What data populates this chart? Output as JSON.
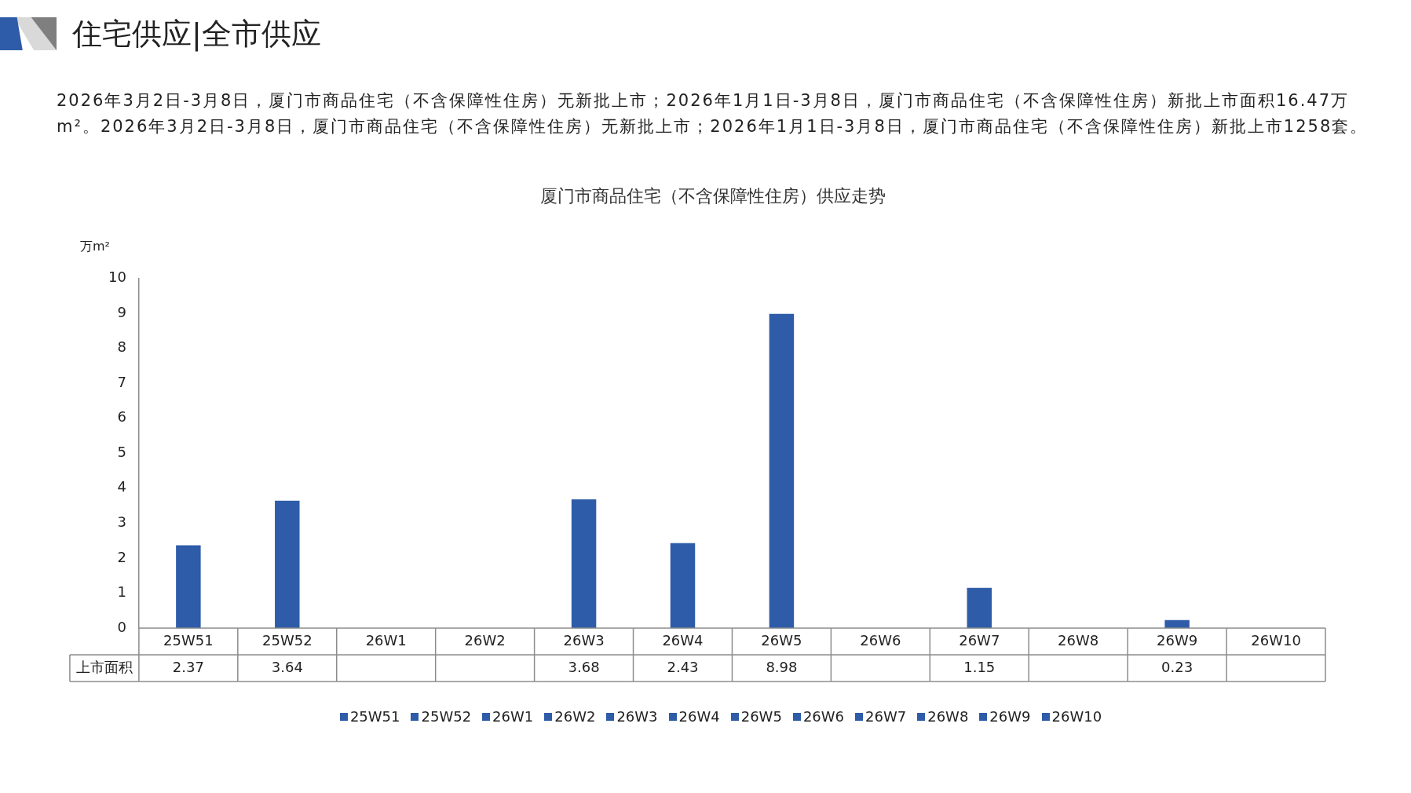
{
  "chart_data": {
    "type": "bar",
    "title": "厦门市商品住宅（不含保障性住房）供应走势",
    "subtitle": "住宅供应|全市供应",
    "annotations": [
      "2026年3月2日-3月8日，厦门市商品住宅（不含保障性住房）无新批上市；2026年1月1日-3月8日，厦门市商品住宅（不含保障性住房）新批上市面积16.47万m²。2026年3月2日-3月8日，厦门市商品住宅（不含保障性住房）无新批上市；2026年1月1日-3月8日，厦门市商品住宅（不含保障性住房）新批上市1258套。"
    ],
    "ylabel": "万m²",
    "categories": [
      "25W51",
      "25W52",
      "26W1",
      "26W2",
      "26W3",
      "26W4",
      "26W5",
      "26W6",
      "26W7",
      "26W8",
      "26W9",
      "26W10"
    ],
    "series": [
      {
        "name": "上市面积",
        "color": "#2e5ca8",
        "values": [
          2.37,
          3.64,
          null,
          null,
          3.68,
          2.43,
          8.98,
          null,
          1.15,
          null,
          0.23,
          null
        ]
      }
    ],
    "ylim": [
      0,
      10
    ],
    "yticks": [
      0,
      1,
      2,
      3,
      4,
      5,
      6,
      7,
      8,
      9,
      10
    ],
    "data_labels": true,
    "grid": false,
    "legend": "bottom"
  }
}
